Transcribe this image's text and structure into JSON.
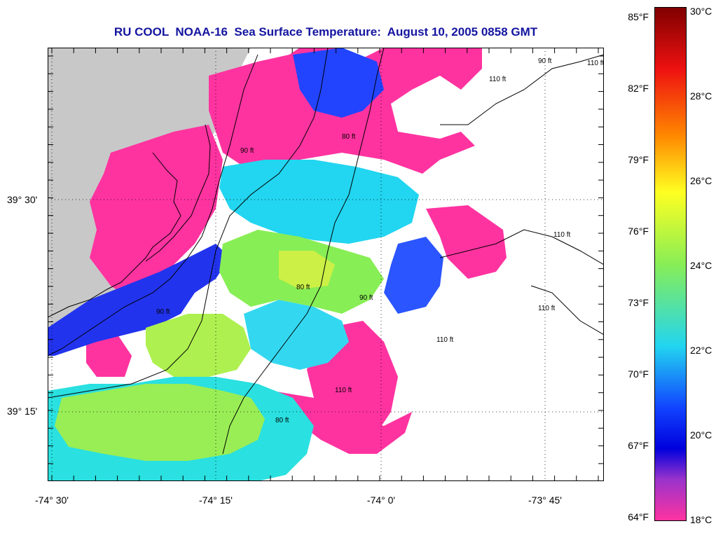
{
  "title": "RU COOL  NOAA-16  Sea Surface Temperature:  August 10, 2005 0858 GMT",
  "colors": {
    "title": "#1414a0",
    "land": "#c8c8c8",
    "ocean_bg": "#ffffff",
    "cold": "#ff33a0",
    "cloud": "#ffffff"
  },
  "lat_labels": [
    "39° 30'",
    "39° 15'"
  ],
  "lon_labels": [
    "-74° 30'",
    "-74° 15'",
    "-74° 0'",
    "-73° 45'"
  ],
  "colorbar": {
    "f_labels": [
      "85°F",
      "82°F",
      "79°F",
      "76°F",
      "73°F",
      "70°F",
      "67°F",
      "64°F"
    ],
    "c_labels": [
      "30°C",
      "28°C",
      "26°C",
      "24°C",
      "22°C",
      "20°C",
      "18°C"
    ],
    "range_c": [
      18,
      30
    ]
  },
  "contours": [
    "110 ft",
    "90 ft",
    "80 ft",
    "90 ft",
    "80 ft",
    "90 ft",
    "90 ft",
    "110 ft",
    "110 ft",
    "110 ft",
    "110 ft",
    "80 ft",
    "110 ft"
  ]
}
